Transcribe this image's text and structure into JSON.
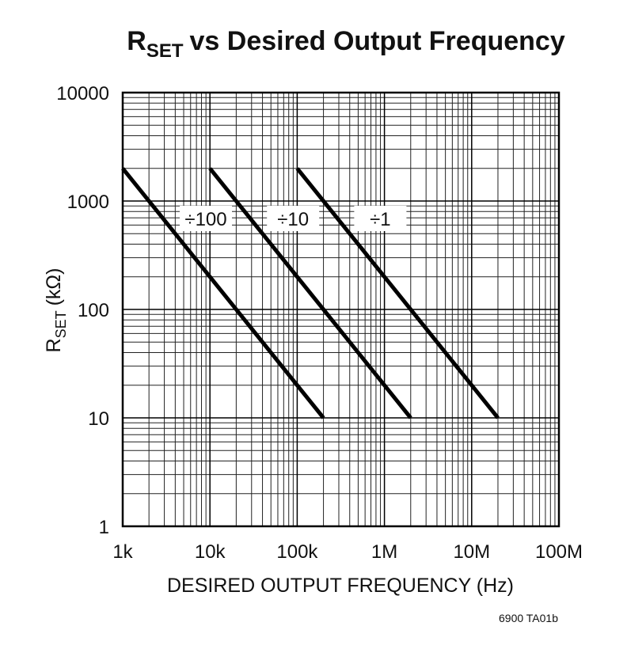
{
  "chart_data": {
    "type": "line",
    "title": {
      "main": "R",
      "sub": "SET",
      "rest": "vs Desired Output Frequency"
    },
    "x_label": "DESIRED OUTPUT FREQUENCY (Hz)",
    "y_label": {
      "main": "R",
      "sub": "SET",
      "rest": "(kΩ)"
    },
    "footnote": "6900 TA01b",
    "xscale": "log",
    "yscale": "log",
    "grid": true,
    "xlim": [
      1000,
      100000000
    ],
    "ylim": [
      1,
      10000
    ],
    "xticks": [
      {
        "value": 1000,
        "label": "1k"
      },
      {
        "value": 10000,
        "label": "10k"
      },
      {
        "value": 100000,
        "label": "100k"
      },
      {
        "value": 1000000,
        "label": "1M"
      },
      {
        "value": 10000000,
        "label": "10M"
      },
      {
        "value": 100000000,
        "label": "100M"
      }
    ],
    "yticks": [
      1,
      10,
      100,
      1000,
      10000
    ],
    "series": [
      {
        "name": "÷100",
        "color": "#000000",
        "x": [
          1000,
          200000
        ],
        "values": [
          2000,
          10
        ]
      },
      {
        "name": "÷10",
        "color": "#000000",
        "x": [
          10000,
          2000000
        ],
        "values": [
          2000,
          10
        ]
      },
      {
        "name": "÷1",
        "color": "#000000",
        "x": [
          100000,
          20000000
        ],
        "values": [
          2000,
          10
        ]
      }
    ]
  }
}
